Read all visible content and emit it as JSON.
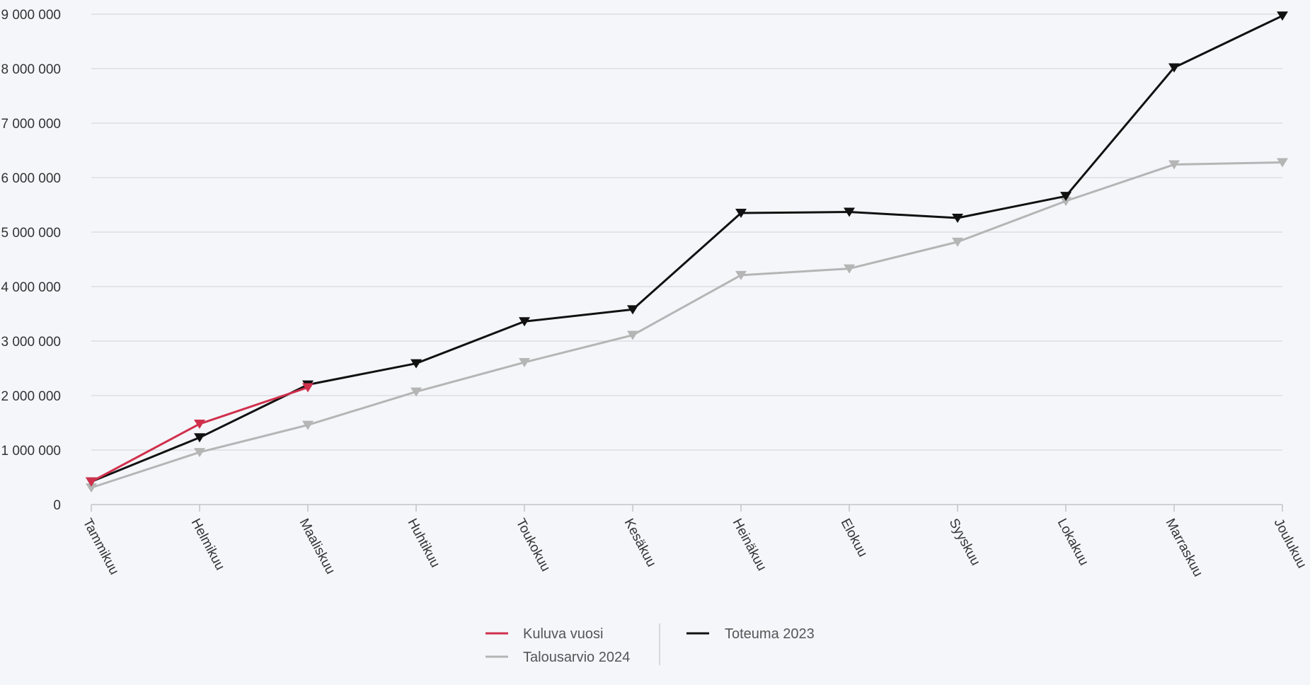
{
  "chart_data": {
    "type": "line",
    "categories": [
      "Tammikuu",
      "Helmikuu",
      "Maaliskuu",
      "Huhtikuu",
      "Toukokuu",
      "Kesäkuu",
      "Heinäkuu",
      "Elokuu",
      "Syyskuu",
      "Lokakuu",
      "Marraskuu",
      "Joulukuu"
    ],
    "y_ticks": [
      "0",
      "1 000 000",
      "2 000 000",
      "3 000 000",
      "4 000 000",
      "5 000 000",
      "6 000 000",
      "7 000 000",
      "8 000 000",
      "9 000 000"
    ],
    "ylim": [
      0,
      9000000
    ],
    "grid": true,
    "legend_position": "bottom",
    "series": [
      {
        "name": "Kuluva vuosi",
        "color": "#d0304c",
        "values": [
          420000,
          1480000,
          2150000,
          null,
          null,
          null,
          null,
          null,
          null,
          null,
          null,
          null
        ]
      },
      {
        "name": "Talousarvio 2024",
        "color": "#b5b5b5",
        "values": [
          310000,
          960000,
          1460000,
          2070000,
          2610000,
          3110000,
          4210000,
          4330000,
          4820000,
          5570000,
          6240000,
          6280000
        ]
      },
      {
        "name": "Toteuma 2023",
        "color": "#111111",
        "values": [
          420000,
          1230000,
          2200000,
          2590000,
          3360000,
          3580000,
          5350000,
          5370000,
          5260000,
          5660000,
          8020000,
          8970000
        ]
      }
    ]
  }
}
